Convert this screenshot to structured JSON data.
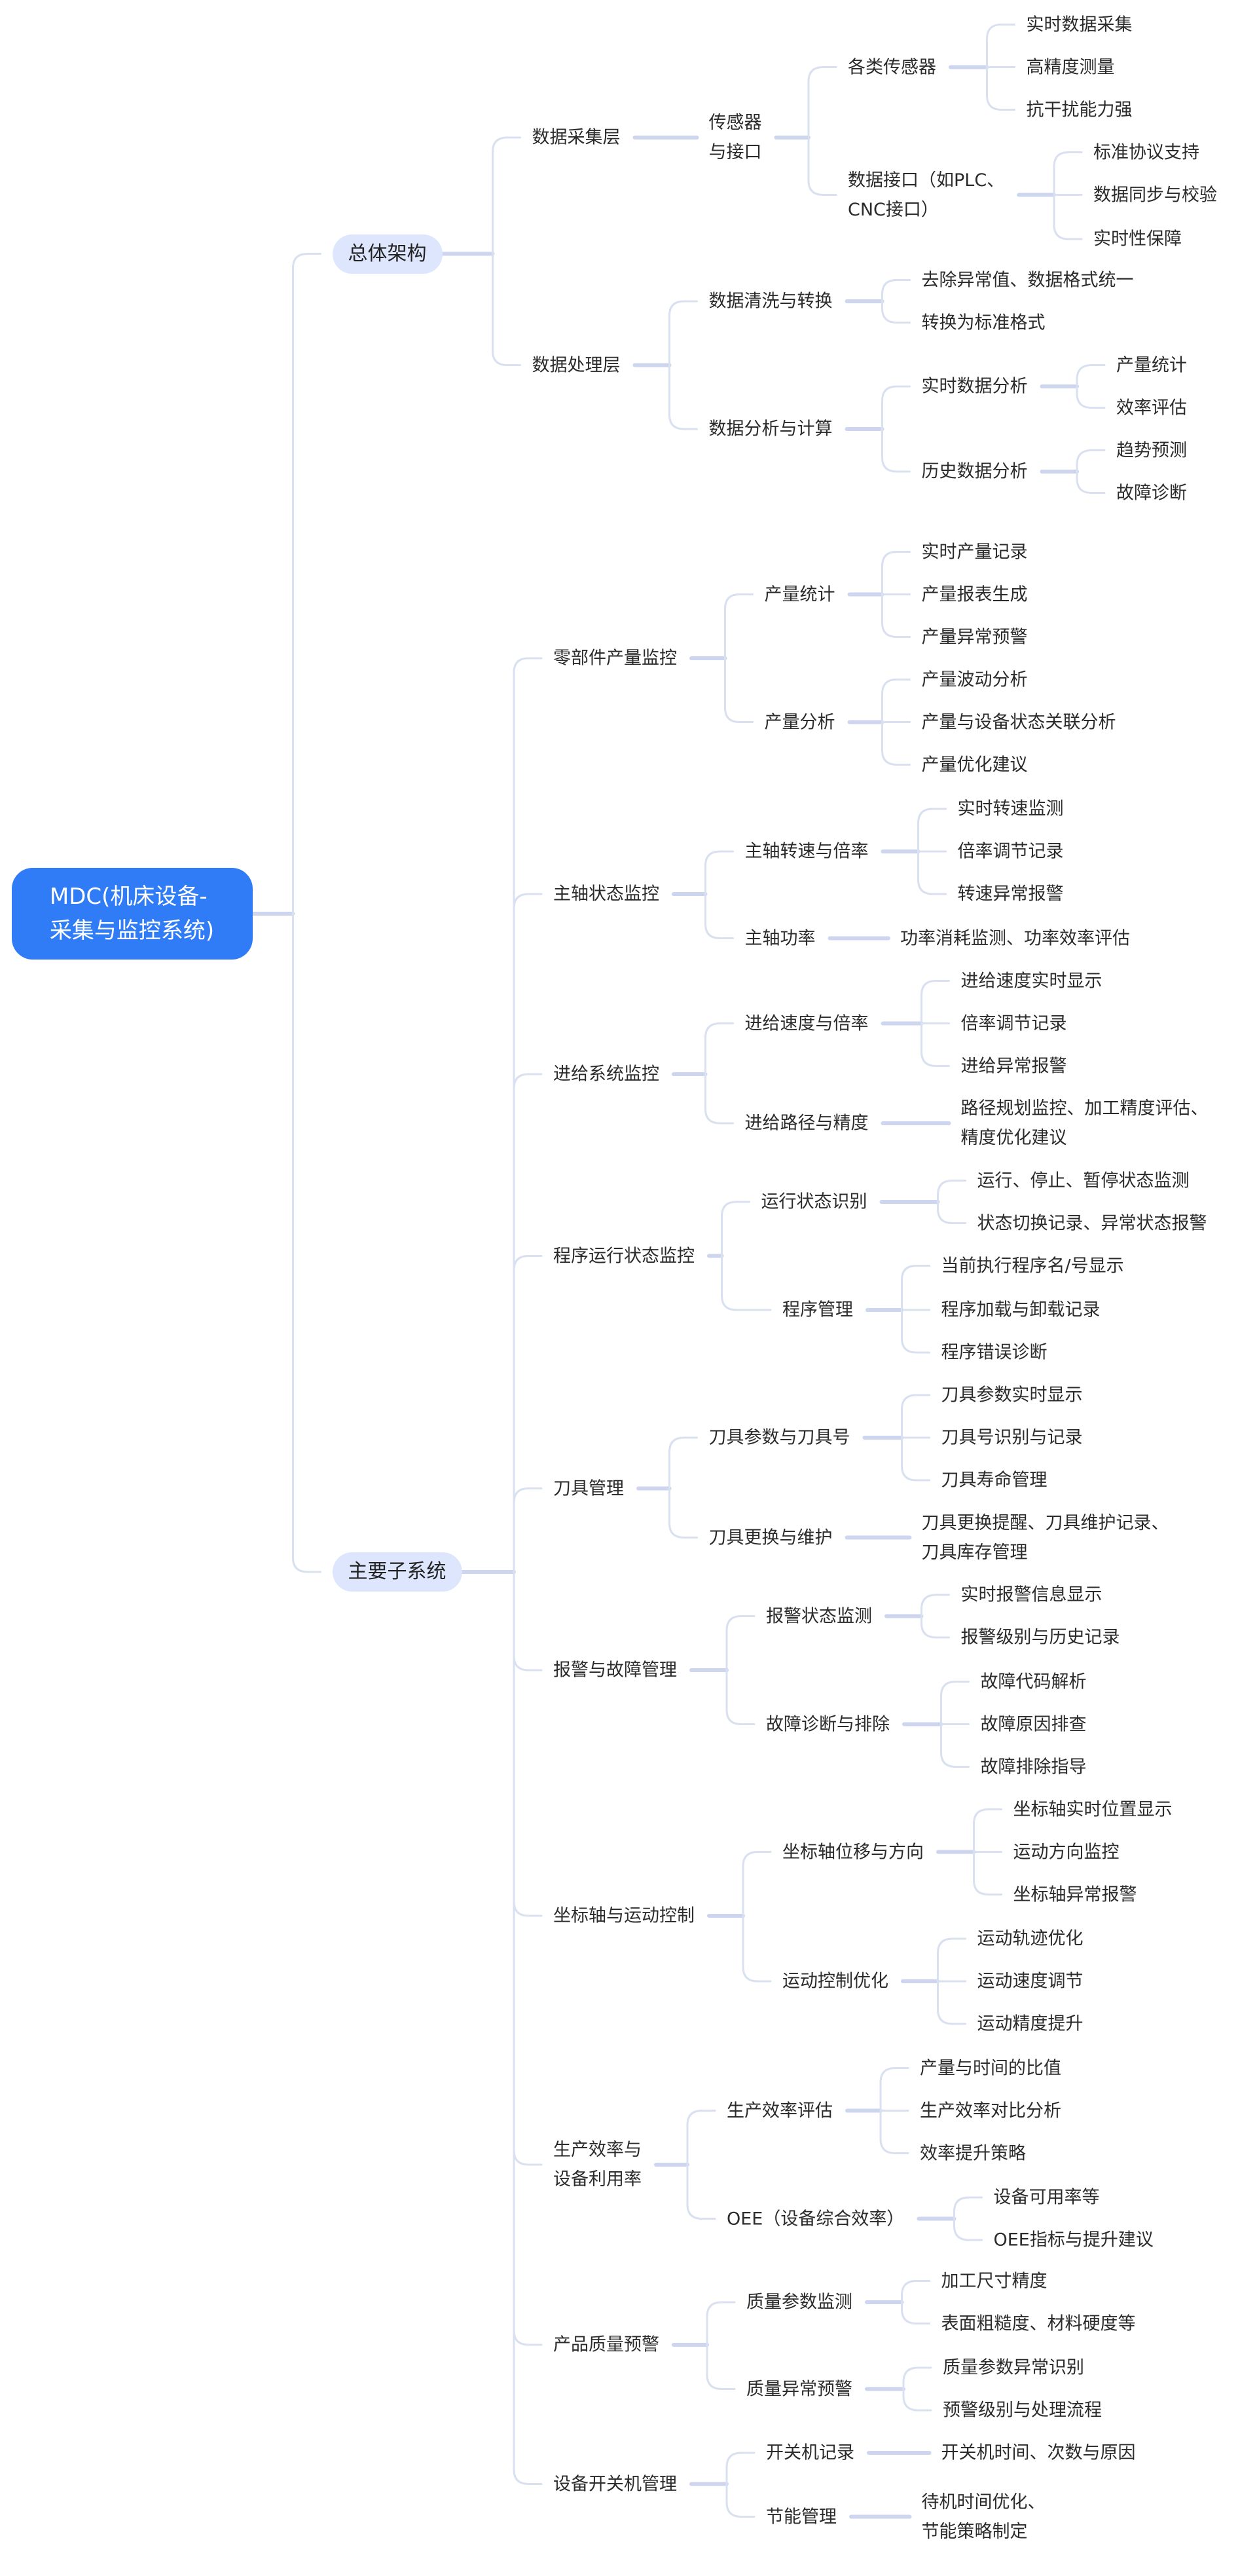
{
  "colors": {
    "root_bg": "#2f7cf6",
    "branch_bg": "#dde6fd",
    "link": "#d4dcef",
    "text": "#2b2b2b"
  },
  "tree": {
    "text": "MDC(机床设备-\n采集与监控系统)",
    "children": [
      {
        "text": "总体架构",
        "children": [
          {
            "text": "数据采集层",
            "children": [
              {
                "text": "传感器\n与接口",
                "children": [
                  {
                    "text": "各类传感器",
                    "children": [
                      {
                        "text": "实时数据采集"
                      },
                      {
                        "text": "高精度测量"
                      },
                      {
                        "text": "抗干扰能力强"
                      }
                    ]
                  },
                  {
                    "text": "数据接口（如PLC、\nCNC接口）",
                    "children": [
                      {
                        "text": "标准协议支持"
                      },
                      {
                        "text": "数据同步与校验"
                      },
                      {
                        "text": "实时性保障"
                      }
                    ]
                  }
                ]
              }
            ]
          },
          {
            "text": "数据处理层",
            "children": [
              {
                "text": "数据清洗与转换",
                "children": [
                  {
                    "text": "去除异常值、数据格式统一"
                  },
                  {
                    "text": "转换为标准格式"
                  }
                ]
              },
              {
                "text": "数据分析与计算",
                "children": [
                  {
                    "text": "实时数据分析",
                    "children": [
                      {
                        "text": "产量统计"
                      },
                      {
                        "text": "效率评估"
                      }
                    ]
                  },
                  {
                    "text": "历史数据分析",
                    "children": [
                      {
                        "text": "趋势预测"
                      },
                      {
                        "text": "故障诊断"
                      }
                    ]
                  }
                ]
              }
            ]
          }
        ]
      },
      {
        "text": "主要子系统",
        "children": [
          {
            "text": "零部件产量监控",
            "children": [
              {
                "text": "产量统计",
                "children": [
                  {
                    "text": "实时产量记录"
                  },
                  {
                    "text": "产量报表生成"
                  },
                  {
                    "text": "产量异常预警"
                  }
                ]
              },
              {
                "text": "产量分析",
                "children": [
                  {
                    "text": "产量波动分析"
                  },
                  {
                    "text": "产量与设备状态关联分析"
                  },
                  {
                    "text": "产量优化建议"
                  }
                ]
              }
            ]
          },
          {
            "text": "主轴状态监控",
            "children": [
              {
                "text": "主轴转速与倍率",
                "children": [
                  {
                    "text": "实时转速监测"
                  },
                  {
                    "text": "倍率调节记录"
                  },
                  {
                    "text": "转速异常报警"
                  }
                ]
              },
              {
                "text": "主轴功率",
                "children": [
                  {
                    "text": "功率消耗监测、功率效率评估"
                  }
                ]
              }
            ]
          },
          {
            "text": "进给系统监控",
            "children": [
              {
                "text": "进给速度与倍率",
                "children": [
                  {
                    "text": "进给速度实时显示"
                  },
                  {
                    "text": "倍率调节记录"
                  },
                  {
                    "text": "进给异常报警"
                  }
                ]
              },
              {
                "text": "进给路径与精度",
                "children": [
                  {
                    "text": "路径规划监控、加工精度评估、\n精度优化建议"
                  }
                ]
              }
            ]
          },
          {
            "text": "程序运行状态监控",
            "children": [
              {
                "text": "运行状态识别",
                "children": [
                  {
                    "text": "运行、停止、暂停状态监测"
                  },
                  {
                    "text": "状态切换记录、异常状态报警"
                  }
                ]
              },
              {
                "text": "程序管理",
                "children": [
                  {
                    "text": "当前执行程序名/号显示"
                  },
                  {
                    "text": "程序加载与卸载记录"
                  },
                  {
                    "text": "程序错误诊断"
                  }
                ]
              }
            ]
          },
          {
            "text": "刀具管理",
            "children": [
              {
                "text": "刀具参数与刀具号",
                "children": [
                  {
                    "text": "刀具参数实时显示"
                  },
                  {
                    "text": "刀具号识别与记录"
                  },
                  {
                    "text": "刀具寿命管理"
                  }
                ]
              },
              {
                "text": "刀具更换与维护",
                "children": [
                  {
                    "text": "刀具更换提醒、刀具维护记录、\n刀具库存管理"
                  }
                ]
              }
            ]
          },
          {
            "text": "报警与故障管理",
            "children": [
              {
                "text": "报警状态监测",
                "children": [
                  {
                    "text": "实时报警信息显示"
                  },
                  {
                    "text": "报警级别与历史记录"
                  }
                ]
              },
              {
                "text": "故障诊断与排除",
                "children": [
                  {
                    "text": "故障代码解析"
                  },
                  {
                    "text": "故障原因排查"
                  },
                  {
                    "text": "故障排除指导"
                  }
                ]
              }
            ]
          },
          {
            "text": "坐标轴与运动控制",
            "children": [
              {
                "text": "坐标轴位移与方向",
                "children": [
                  {
                    "text": "坐标轴实时位置显示"
                  },
                  {
                    "text": "运动方向监控"
                  },
                  {
                    "text": "坐标轴异常报警"
                  }
                ]
              },
              {
                "text": "运动控制优化",
                "children": [
                  {
                    "text": "运动轨迹优化"
                  },
                  {
                    "text": "运动速度调节"
                  },
                  {
                    "text": "运动精度提升"
                  }
                ]
              }
            ]
          },
          {
            "text": "生产效率与\n设备利用率",
            "children": [
              {
                "text": "生产效率评估",
                "children": [
                  {
                    "text": "产量与时间的比值"
                  },
                  {
                    "text": "生产效率对比分析"
                  },
                  {
                    "text": "效率提升策略"
                  }
                ]
              },
              {
                "text": "OEE（设备综合效率）",
                "children": [
                  {
                    "text": "设备可用率等"
                  },
                  {
                    "text": "OEE指标与提升建议"
                  }
                ]
              }
            ]
          },
          {
            "text": "产品质量预警",
            "children": [
              {
                "text": "质量参数监测",
                "children": [
                  {
                    "text": "加工尺寸精度"
                  },
                  {
                    "text": "表面粗糙度、材料硬度等"
                  }
                ]
              },
              {
                "text": "质量异常预警",
                "children": [
                  {
                    "text": "质量参数异常识别"
                  },
                  {
                    "text": "预警级别与处理流程"
                  }
                ]
              }
            ]
          },
          {
            "text": "设备开关机管理",
            "children": [
              {
                "text": "开关机记录",
                "children": [
                  {
                    "text": "开关机时间、次数与原因"
                  }
                ]
              },
              {
                "text": "节能管理",
                "children": [
                  {
                    "text": "待机时间优化、\n节能策略制定"
                  }
                ]
              }
            ]
          }
        ]
      }
    ]
  }
}
